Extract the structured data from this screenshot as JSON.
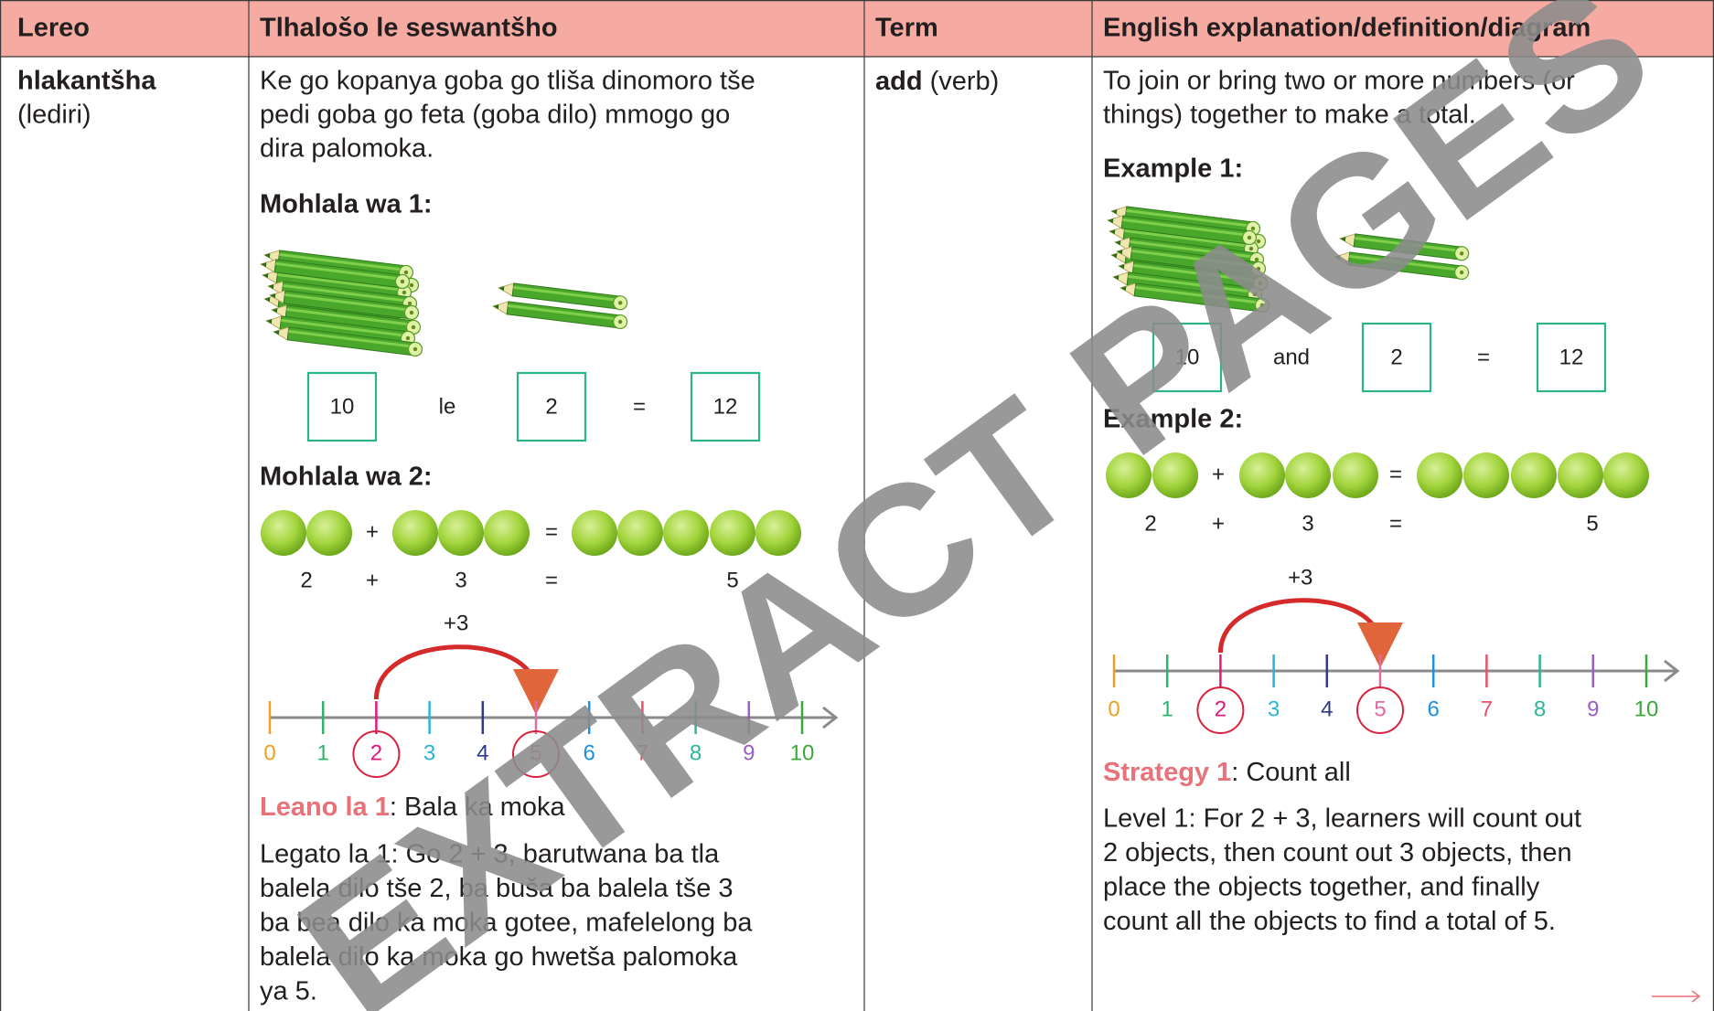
{
  "header": [
    "Lereo",
    "Tlhalošo le seswantšho",
    "Term",
    "English explanation/definition/diagram"
  ],
  "lereo": {
    "word": "hlakantšha",
    "part_of_speech": "(lediri)"
  },
  "tlhalosho": {
    "definition": [
      "Ke go kopanya goba go tliša dinomoro tše",
      "pedi goba go feta (goba dilo) mmogo go",
      "dira palomoka."
    ],
    "example_1": {
      "title": "Mohlala wa 1:",
      "equation": [
        "10",
        "le",
        "2",
        "=",
        "12"
      ]
    },
    "example_2": {
      "title": "Mohlala wa 2:",
      "ball_symbols": [
        "+",
        "="
      ],
      "sum": [
        "2",
        "+",
        "3",
        "=",
        "5"
      ],
      "jump": "+3",
      "number_line": [
        "0",
        "1",
        "2",
        "3",
        "4",
        "5",
        "6",
        "7",
        "8",
        "9",
        "10"
      ]
    },
    "strategy": {
      "label": "Leano la 1",
      "text": ": Bala ka moka"
    },
    "level": [
      "Legato la 1: Go 2 + 3, barutwana ba tla",
      "balela dilo tše 2, ba buša ba balela tše 3",
      "ba bea dilo ka moka gotee, mafelelong ba",
      "balela dilo ka moka go hwetša palomoka",
      "ya 5."
    ]
  },
  "term": {
    "word": "add",
    "part_of_speech": "(verb)"
  },
  "english": {
    "definition": [
      "To join or bring two or more numbers (or",
      "things) together to make a total."
    ],
    "example_1": {
      "title": "Example 1:",
      "equation": [
        "10",
        "and",
        "2",
        "=",
        "12"
      ]
    },
    "example_2": {
      "title": "Example 2:",
      "ball_symbols": [
        "+",
        "="
      ],
      "sum": [
        "2",
        "+",
        "3",
        "=",
        "5"
      ],
      "jump": "+3",
      "number_line": [
        "0",
        "1",
        "2",
        "3",
        "4",
        "5",
        "6",
        "7",
        "8",
        "9",
        "10"
      ]
    },
    "strategy": {
      "label": "Strategy 1",
      "text": ": Count all"
    },
    "level": [
      "Level 1: For 2 + 3, learners will count out",
      "2 objects, then count out 3 objects, then",
      "place the objects together, and finally",
      "count all the objects to find a total of 5."
    ]
  },
  "watermark": "EXTRACT PAGES"
}
